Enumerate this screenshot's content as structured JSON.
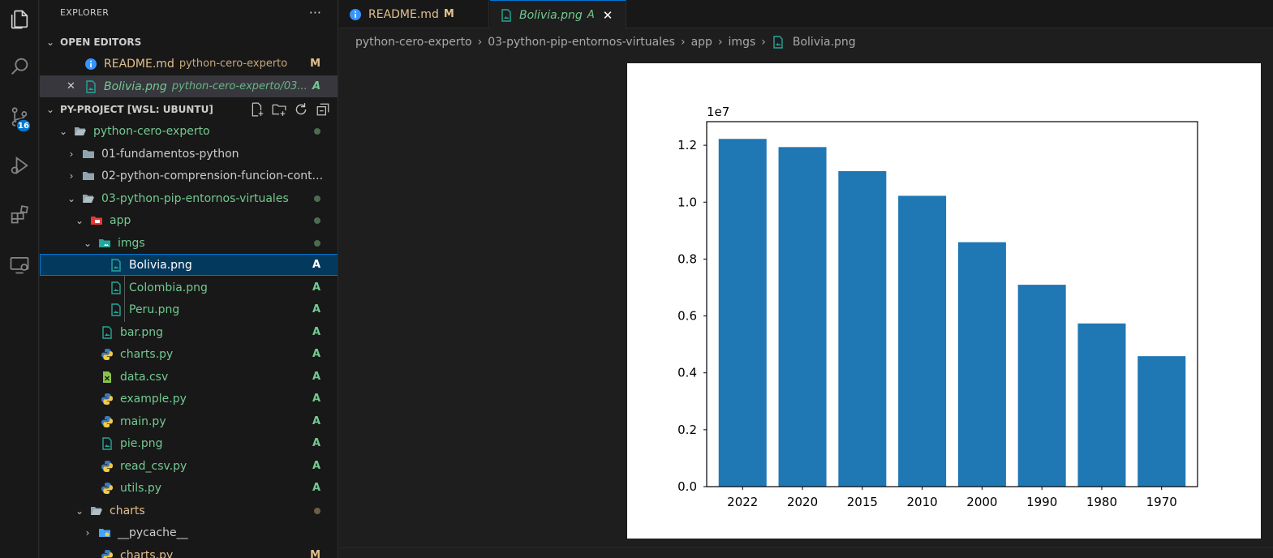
{
  "sidebar": {
    "title": "EXPLORER",
    "more": "···",
    "open_editors_header": "OPEN EDITORS",
    "open_editors": [
      {
        "name": "README.md",
        "desc": "python-cero-experto",
        "status": "M"
      },
      {
        "name": "Bolivia.png",
        "desc": "python-cero-experto/03...",
        "status": "A"
      }
    ],
    "project_header": "PY-PROJECT [WSL: UBUNTU]",
    "tree": [
      {
        "name": "python-cero-experto"
      },
      {
        "name": "01-fundamentos-python"
      },
      {
        "name": "02-python-comprension-funcion-cont..."
      },
      {
        "name": "03-python-pip-entornos-virtuales"
      },
      {
        "name": "app"
      },
      {
        "name": "imgs"
      },
      {
        "name": "Bolivia.png",
        "status": "A"
      },
      {
        "name": "Colombia.png",
        "status": "A"
      },
      {
        "name": "Peru.png",
        "status": "A"
      },
      {
        "name": "bar.png",
        "status": "A"
      },
      {
        "name": "charts.py",
        "status": "A"
      },
      {
        "name": "data.csv",
        "status": "A"
      },
      {
        "name": "example.py",
        "status": "A"
      },
      {
        "name": "main.py",
        "status": "A"
      },
      {
        "name": "pie.png",
        "status": "A"
      },
      {
        "name": "read_csv.py",
        "status": "A"
      },
      {
        "name": "utils.py",
        "status": "A"
      },
      {
        "name": "charts"
      },
      {
        "name": "__pycache__"
      },
      {
        "name": "charts.py",
        "status": "M"
      }
    ]
  },
  "activity": {
    "scm_badge": "16"
  },
  "tabs": [
    {
      "label": "README.md",
      "state": "M"
    },
    {
      "label": "Bolivia.png",
      "state": "A",
      "close": "✕"
    }
  ],
  "breadcrumbs": [
    "python-cero-experto",
    "03-python-pip-entornos-virtuales",
    "app",
    "imgs",
    "Bolivia.png"
  ],
  "colors": {
    "bar": "#1f77b4",
    "accent": "#0078d4",
    "added": "#73c991",
    "modified": "#e2c08d"
  },
  "chart_data": {
    "type": "bar",
    "categories": [
      "2022",
      "2020",
      "2015",
      "2010",
      "2000",
      "1990",
      "1980",
      "1970"
    ],
    "values": [
      12224110,
      11936162,
      11090085,
      10223270,
      8592656,
      7096194,
      5736088,
      4585693
    ],
    "offset_label": "1e7",
    "yticks": [
      "0.0",
      "0.2",
      "0.4",
      "0.6",
      "0.8",
      "1.0",
      "1.2"
    ],
    "ylim": [
      0,
      12830000
    ],
    "grid": false
  }
}
